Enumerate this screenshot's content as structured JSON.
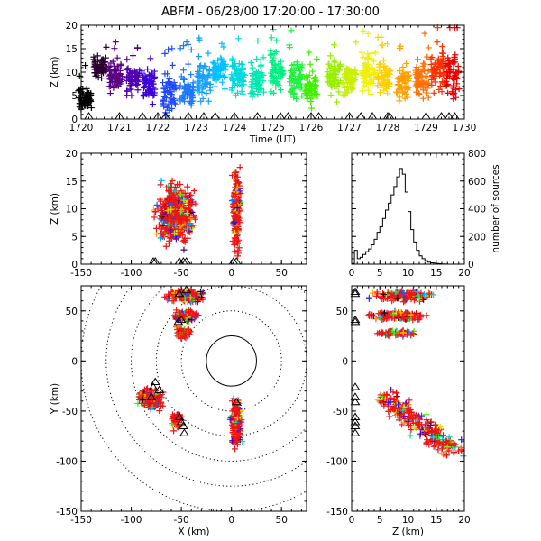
{
  "chart_data": {
    "title": "ABFM - 06/28/00 17:20:00 - 17:30:00",
    "type": "scatter",
    "marker": "+",
    "station_marker": "triangle",
    "panels": {
      "time_height": {
        "xlabel": "Time (UT)",
        "ylabel": "Z (km)",
        "xlim": [
          1720,
          1730
        ],
        "ylim": [
          0,
          20
        ],
        "xticks": [
          "1720",
          "1721",
          "1722",
          "1723",
          "1724",
          "1725",
          "1726",
          "1727",
          "1728",
          "1729",
          "1730"
        ],
        "yticks": [
          "0",
          "5",
          "10",
          "15",
          "20"
        ],
        "color_by_time": true,
        "bursts": [
          {
            "t": 1720.1,
            "z": 4.5,
            "spread": 2.0,
            "color": "#000000"
          },
          {
            "t": 1720.5,
            "z": 11.0,
            "spread": 2.0,
            "color": "#2a0030"
          },
          {
            "t": 1720.9,
            "z": 9.0,
            "spread": 2.5,
            "color": "#5a0082"
          },
          {
            "t": 1721.35,
            "z": 8.5,
            "spread": 2.5,
            "color": "#5000b0"
          },
          {
            "t": 1721.75,
            "z": 7.5,
            "spread": 3.0,
            "color": "#3c00d8"
          },
          {
            "t": 1722.3,
            "z": 5.5,
            "spread": 3.0,
            "color": "#2048ff"
          },
          {
            "t": 1722.75,
            "z": 6.0,
            "spread": 3.0,
            "color": "#1e78ff"
          },
          {
            "t": 1723.2,
            "z": 8.0,
            "spread": 3.0,
            "color": "#14a0ff"
          },
          {
            "t": 1723.6,
            "z": 10.0,
            "spread": 2.5,
            "color": "#00c0ff"
          },
          {
            "t": 1724.1,
            "z": 8.5,
            "spread": 3.0,
            "color": "#00d8e0"
          },
          {
            "t": 1724.6,
            "z": 8.0,
            "spread": 3.0,
            "color": "#00e8b0"
          },
          {
            "t": 1725.1,
            "z": 10.0,
            "spread": 3.0,
            "color": "#00f080"
          },
          {
            "t": 1725.6,
            "z": 8.5,
            "spread": 3.0,
            "color": "#20f040"
          },
          {
            "t": 1726.0,
            "z": 6.5,
            "spread": 2.5,
            "color": "#40f000"
          },
          {
            "t": 1726.6,
            "z": 9.0,
            "spread": 3.0,
            "color": "#98f000"
          },
          {
            "t": 1727.0,
            "z": 8.5,
            "spread": 2.5,
            "color": "#c8f000"
          },
          {
            "t": 1727.5,
            "z": 10.0,
            "spread": 3.0,
            "color": "#f0f000"
          },
          {
            "t": 1727.9,
            "z": 9.0,
            "spread": 3.0,
            "color": "#ffd000"
          },
          {
            "t": 1728.4,
            "z": 7.5,
            "spread": 2.5,
            "color": "#ffa000"
          },
          {
            "t": 1728.9,
            "z": 8.5,
            "spread": 3.0,
            "color": "#ff7000"
          },
          {
            "t": 1729.3,
            "z": 10.0,
            "spread": 3.0,
            "color": "#ff3000"
          },
          {
            "t": 1729.7,
            "z": 9.0,
            "spread": 4.0,
            "color": "#e80000"
          }
        ],
        "station_times": [
          1720.2,
          1721.0,
          1721.6,
          1722.0,
          1722.2,
          1722.8,
          1723.2,
          1723.5,
          1724.0,
          1724.6,
          1725.2,
          1725.4,
          1726.0,
          1726.2,
          1727.0,
          1727.3,
          1727.6,
          1728.0,
          1728.05,
          1729.0,
          1729.4,
          1729.6,
          1729.75
        ]
      },
      "x_height": {
        "ylabel": "Z (km)",
        "xlim": [
          -150,
          75
        ],
        "ylim": [
          0,
          20
        ],
        "xticks": [
          "-150",
          "-100",
          "-50",
          "0",
          "50"
        ],
        "yticks": [
          "0",
          "5",
          "10",
          "15",
          "20"
        ],
        "clusters": [
          {
            "x": -55,
            "z": 9,
            "sx": 15,
            "sz": 4
          },
          {
            "x": 5,
            "z": 10,
            "sx": 3,
            "sz": 6
          }
        ],
        "station_x": [
          -78,
          -76,
          -52,
          -48,
          -45,
          2,
          5
        ]
      },
      "histogram": {
        "ylabel": "number of sources",
        "xlim": [
          0,
          20
        ],
        "ylim": [
          0,
          800
        ],
        "xticks": [
          "0",
          "5",
          "10",
          "15",
          "20"
        ],
        "yticks": [
          "0",
          "200",
          "400",
          "600",
          "800"
        ],
        "bins": [
          0,
          0.5,
          1,
          1.5,
          2,
          2.5,
          3,
          3.5,
          4,
          4.5,
          5,
          5.5,
          6,
          6.5,
          7,
          7.5,
          8,
          8.5,
          9,
          9.5,
          10,
          10.5,
          11,
          11.5,
          12,
          12.5,
          13,
          13.5,
          14,
          14.5,
          15,
          15.5,
          16,
          16.5,
          17,
          17.5,
          18,
          18.5,
          19,
          19.5
        ],
        "counts": [
          5,
          100,
          40,
          50,
          70,
          90,
          110,
          140,
          180,
          230,
          270,
          330,
          390,
          440,
          500,
          560,
          630,
          690,
          650,
          520,
          380,
          250,
          160,
          100,
          60,
          40,
          25,
          15,
          10,
          8,
          5,
          3,
          2,
          1,
          0,
          0,
          0,
          0,
          0,
          0
        ]
      },
      "plan_view": {
        "xlabel": "X (km)",
        "ylabel": "Y (km)",
        "xlim": [
          -150,
          75
        ],
        "ylim": [
          -150,
          75
        ],
        "xticks": [
          "-150",
          "-100",
          "-50",
          "0",
          "50"
        ],
        "yticks": [
          "-150",
          "-100",
          "-50",
          "0",
          "50"
        ],
        "range_rings_km": [
          25,
          50,
          75,
          100,
          125,
          150
        ],
        "clusters": [
          {
            "x": -45,
            "y": 65,
            "sx": 15,
            "sy": 5
          },
          {
            "x": -45,
            "y": 45,
            "sx": 10,
            "sy": 4
          },
          {
            "x": -48,
            "y": 28,
            "sx": 6,
            "sy": 4
          },
          {
            "x": -80,
            "y": -38,
            "sx": 10,
            "sy": 8
          },
          {
            "x": -55,
            "y": -60,
            "sx": 4,
            "sy": 6
          },
          {
            "x": 5,
            "y": -60,
            "sx": 4,
            "sy": 20
          }
        ],
        "stations": [
          {
            "x": -52,
            "y": 68
          },
          {
            "x": -45,
            "y": 72
          },
          {
            "x": -53,
            "y": 40
          },
          {
            "x": -50,
            "y": 42
          },
          {
            "x": -78,
            "y": -25
          },
          {
            "x": -76,
            "y": -20
          },
          {
            "x": -72,
            "y": -28
          },
          {
            "x": -80,
            "y": -35
          },
          {
            "x": -52,
            "y": -55
          },
          {
            "x": -50,
            "y": -60
          },
          {
            "x": -48,
            "y": -64
          },
          {
            "x": -47,
            "y": -71
          },
          {
            "x": 5,
            "y": -40
          }
        ]
      },
      "z_y": {
        "xlabel": "Z (km)",
        "xlim": [
          0,
          20
        ],
        "ylim": [
          -150,
          75
        ],
        "xticks": [
          "0",
          "5",
          "10",
          "15",
          "20"
        ],
        "yticks": [
          "-150",
          "-100",
          "-50",
          "0",
          "50"
        ],
        "clusters": [
          {
            "z": 9,
            "y": 65,
            "sz": 4,
            "sy": 5
          },
          {
            "z": 8,
            "y": 45,
            "sz": 4,
            "sy": 4
          },
          {
            "z": 8,
            "y": 28,
            "sz": 3,
            "sy": 3
          },
          {
            "z": 11,
            "y": -55,
            "sz": 3.5,
            "sy": 15
          }
        ],
        "station_y": [
          70,
          68,
          42,
          40,
          -25,
          -35,
          -40,
          -55,
          -60,
          -64,
          -71
        ]
      }
    }
  }
}
